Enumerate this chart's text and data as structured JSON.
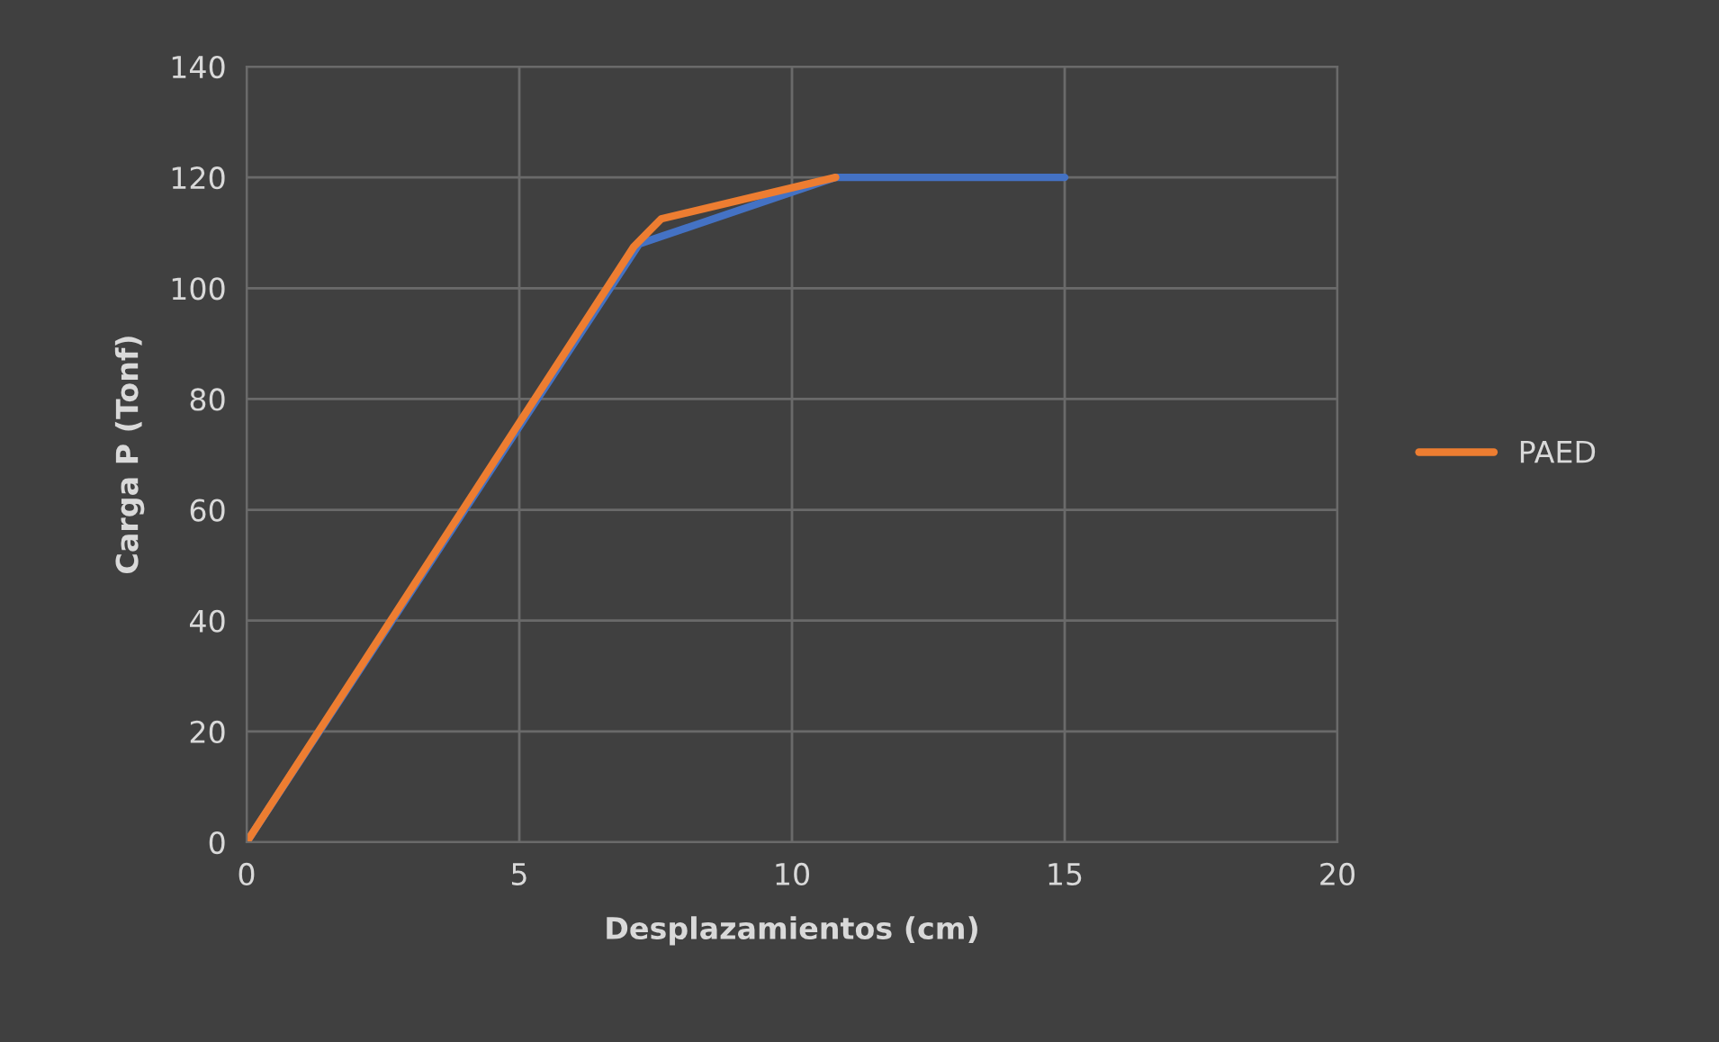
{
  "chart_data": {
    "type": "line",
    "xlabel": "Desplazamientos (cm)",
    "ylabel": "Carga P (Tonf)",
    "series": [
      {
        "color": "#4472c4",
        "x": [
          0,
          7.2,
          10.8,
          15
        ],
        "values": [
          0,
          108,
          120,
          120
        ]
      },
      {
        "name": "PAED",
        "color": "#ed7d31",
        "x": [
          0,
          7.1,
          7.6,
          10.8
        ],
        "values": [
          0,
          107.5,
          112.5,
          120
        ]
      }
    ],
    "xlim": [
      0,
      20
    ],
    "xticks": [
      0,
      5,
      10,
      15,
      20
    ],
    "ylim": [
      0,
      140
    ],
    "yticks": [
      0,
      20,
      40,
      60,
      80,
      100,
      120,
      140
    ],
    "grid": true,
    "legend": "right",
    "marker": "none",
    "line_style": "solid"
  }
}
